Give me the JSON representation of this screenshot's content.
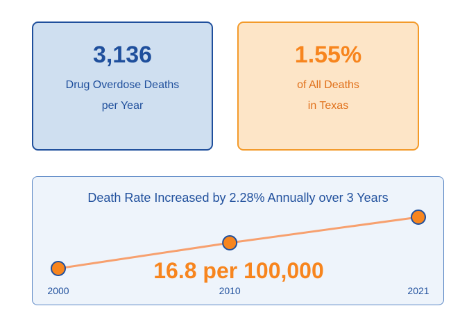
{
  "colors": {
    "blue_text": "#1f4f9c",
    "blue_card_bg": "#cfdff0",
    "orange_text": "#f7851e",
    "orange_card_bg": "#fde5c7",
    "orange_border": "#f39a2a",
    "trend_line": "#f7a06e",
    "panel_bg": "#eef4fb"
  },
  "stat_cards": {
    "deaths": {
      "value": "3,136",
      "line1": "Drug Overdose Deaths",
      "line2": "per Year"
    },
    "share": {
      "value": "1.55%",
      "line1": "of All Deaths",
      "line2": "in Texas"
    }
  },
  "trend": {
    "title": "Death Rate Increased by 2.28% Annually over 3 Years",
    "current_rate_label": "16.8 per 100,000"
  },
  "chart_data": {
    "type": "line",
    "title": "Death Rate Increased by 2.28% Annually over 3 Years",
    "x": [
      "2000",
      "2010",
      "2021"
    ],
    "series": [
      {
        "values": [
          0,
          1,
          2
        ]
      }
    ],
    "value_note": "",
    "grid": false,
    "legend": "none"
  }
}
